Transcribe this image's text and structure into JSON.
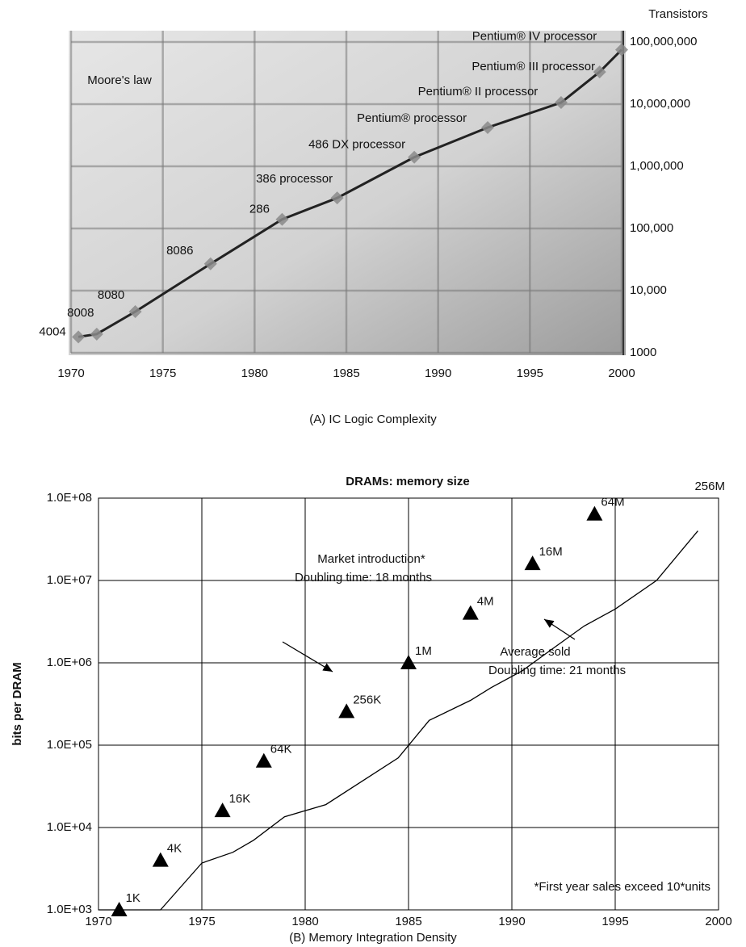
{
  "chart_data": [
    {
      "type": "line",
      "caption": "(A) IC Logic Complexity",
      "y_label": "Transistors",
      "annotation": "Moore's law",
      "yscale": "log",
      "grid": true,
      "xlim": [
        1970,
        2000
      ],
      "xticks": [
        1970,
        1975,
        1980,
        1985,
        1990,
        1995,
        2000
      ],
      "ylim": [
        1000,
        100000000
      ],
      "yticks": [
        1000,
        {
          "value": 10000,
          "label": "10,000"
        },
        {
          "value": 100000,
          "label": "100,000"
        },
        {
          "value": 1000000,
          "label": "1,000,000"
        },
        {
          "value": 10000000,
          "label": "10,000,000"
        },
        {
          "value": 100000000,
          "label": "100,000,000"
        }
      ],
      "series": [
        {
          "color": "#222222",
          "marker_color": "#8a8a8a",
          "x": [
            1970.4,
            1971.4,
            1973.5,
            1977.6,
            1981.5,
            1984.5,
            1988.7,
            1992.7,
            1996.7,
            1998.8,
            2000
          ],
          "values": [
            1800,
            2000,
            4600,
            27000,
            140000,
            310000,
            1400000,
            4200000,
            10600000,
            33000000,
            75000000
          ],
          "labels": [
            "4004",
            "8008",
            "8080",
            "8086",
            "286",
            "386 processor",
            "486 DX processor",
            "Pentium® processor",
            "Pentium® II processor",
            "Pentium® III processor",
            "Pentium® IV processor"
          ]
        }
      ]
    },
    {
      "type": "scatter",
      "title": "DRAMs: memory size",
      "caption": "(B) Memory Integration Density",
      "y_label": "bits per DRAM",
      "annotations": [
        "Market introduction*",
        "Doubling time: 18 months",
        "Average sold",
        "Doubling time: 21 months",
        "*First year sales exceed 10*units",
        "256M"
      ],
      "yscale": "log",
      "grid": true,
      "xlim": [
        1970,
        2000
      ],
      "xticks": [
        1970,
        1975,
        1980,
        1985,
        1990,
        1995,
        2000
      ],
      "ylim": [
        1000,
        100000000
      ],
      "yticks": [
        {
          "value": 1000,
          "label": "1.0E+03"
        },
        {
          "value": 10000,
          "label": "1.0E+04"
        },
        {
          "value": 100000,
          "label": "1.0E+05"
        },
        {
          "value": 1000000,
          "label": "1.0E+06"
        },
        {
          "value": 10000000,
          "label": "1.0E+07"
        },
        {
          "value": 100000000,
          "label": "1.0E+08"
        }
      ],
      "series": [
        {
          "type": "scatter",
          "color": "#000000",
          "x": [
            1971,
            1973,
            1976,
            1978,
            1982,
            1985,
            1988,
            1991,
            1994
          ],
          "values": [
            1000,
            4000,
            16000,
            64000,
            256000,
            1000000,
            4000000,
            16000000,
            64000000
          ],
          "value_labels": [
            "1K",
            "4K",
            "16K",
            "64K",
            "256K",
            "1M",
            "4M",
            "16M",
            "64M"
          ]
        },
        {
          "type": "line",
          "color": "#000000",
          "x": [
            1970,
            1973,
            1975,
            1976.5,
            1977.5,
            1979,
            1981,
            1983,
            1984.5,
            1986,
            1988,
            1989,
            1990.5,
            1992,
            1993.5,
            1995,
            1997,
            1999
          ],
          "values": [
            1000,
            1000,
            3700,
            5000,
            7000,
            13500,
            19000,
            40000,
            70000,
            200000,
            350000,
            500000,
            800000,
            1500000,
            2800000,
            4500000,
            10000000,
            40000000
          ]
        }
      ]
    }
  ]
}
